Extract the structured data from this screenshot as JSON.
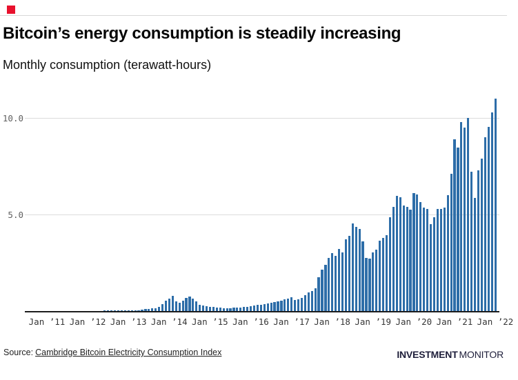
{
  "branding": {
    "red_square_color": "#e8112d",
    "logo_bold": "INVESTMENT",
    "logo_light": "MONITOR"
  },
  "footer": {
    "source_prefix": "Source:",
    "source_link_text": "Cambridge Bitcoin Electricity Consumption Index"
  },
  "chart_data": {
    "type": "bar",
    "title": "Bitcoin’s energy consumption is steadily increasing",
    "subtitle": "Monthly consumption (terawatt-hours)",
    "ylabel": "Monthly consumption (terawatt-hours)",
    "xlabel": "",
    "unit": "TWh",
    "frequency": "monthly",
    "x_start_month": "2010-07",
    "x_end_month": "2022-01",
    "x_tick_labels": [
      "Jan ’11",
      "Jan ’12",
      "Jan ’13",
      "Jan ’14",
      "Jan ’15",
      "Jan ’16",
      "Jan ’17",
      "Jan ’18",
      "Jan ’19",
      "Jan ’20",
      "Jan ’21",
      "Jan ’22"
    ],
    "y_ticks": [
      {
        "label": "5.0",
        "value": 5
      },
      {
        "label": "10.0",
        "value": 10
      }
    ],
    "ylim": [
      0,
      11.6
    ],
    "grid": true,
    "legend": false,
    "bar_color": "#2d6da8",
    "series": [
      {
        "name": "Monthly consumption (terawatt-hours)",
        "values": [
          0,
          0,
          0,
          0,
          0,
          0.01,
          0.01,
          0.01,
          0.01,
          0.01,
          0.01,
          0.01,
          0.01,
          0.01,
          0.01,
          0.01,
          0.01,
          0.01,
          0.01,
          0.01,
          0.01,
          0.01,
          0.01,
          0.02,
          0.02,
          0.02,
          0.02,
          0.02,
          0.02,
          0.02,
          0.02,
          0.03,
          0.04,
          0.05,
          0.07,
          0.1,
          0.11,
          0.13,
          0.16,
          0.22,
          0.36,
          0.55,
          0.65,
          0.78,
          0.5,
          0.42,
          0.55,
          0.68,
          0.74,
          0.65,
          0.5,
          0.32,
          0.28,
          0.25,
          0.22,
          0.2,
          0.18,
          0.17,
          0.16,
          0.15,
          0.16,
          0.17,
          0.18,
          0.19,
          0.21,
          0.23,
          0.26,
          0.28,
          0.31,
          0.33,
          0.36,
          0.4,
          0.43,
          0.46,
          0.5,
          0.55,
          0.6,
          0.64,
          0.7,
          0.56,
          0.62,
          0.68,
          0.82,
          0.95,
          1.02,
          1.18,
          1.75,
          2.16,
          2.4,
          2.75,
          3.0,
          2.87,
          3.23,
          3.05,
          3.7,
          3.9,
          4.54,
          4.36,
          4.25,
          3.6,
          2.75,
          2.7,
          3.05,
          3.17,
          3.64,
          3.77,
          3.94,
          4.84,
          5.4,
          5.95,
          5.9,
          5.45,
          5.4,
          5.25,
          6.1,
          6.05,
          5.65,
          5.35,
          5.3,
          4.5,
          4.85,
          5.3,
          5.3,
          5.35,
          6.0,
          7.1,
          8.9,
          8.45,
          9.8,
          9.5,
          10.0,
          7.2,
          5.85,
          7.3,
          7.9,
          9.0,
          9.55,
          10.3,
          11.0
        ]
      }
    ]
  }
}
